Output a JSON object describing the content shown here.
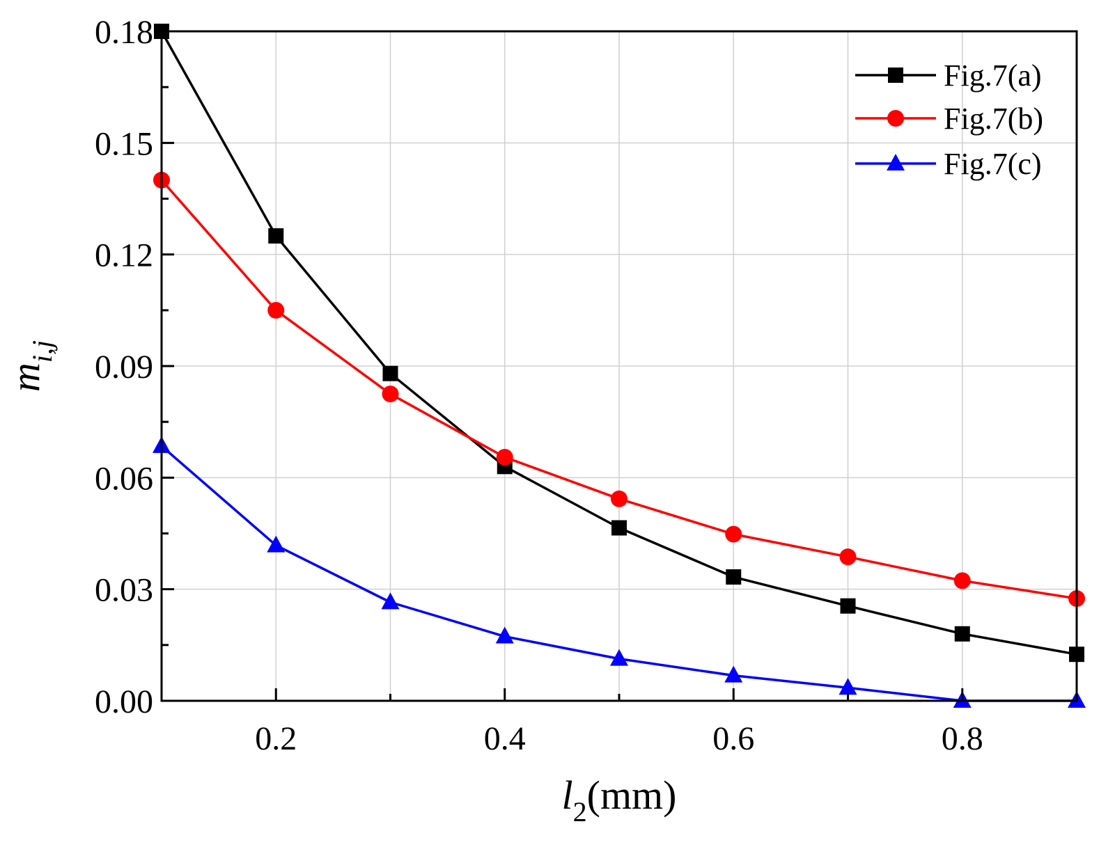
{
  "chart_data": {
    "type": "line",
    "title": "",
    "xlabel": {
      "main": "l",
      "sub": "2",
      "unit": "(mm)"
    },
    "ylabel": {
      "main": "m",
      "sub": "i,j"
    },
    "xlim": [
      0.1,
      0.9
    ],
    "ylim": [
      0.0,
      0.18
    ],
    "xticks": [
      "0.2",
      "0.4",
      "0.6",
      "0.8"
    ],
    "xtick_values": [
      0.2,
      0.4,
      0.6,
      0.8
    ],
    "yticks": [
      "0.00",
      "0.03",
      "0.06",
      "0.09",
      "0.12",
      "0.15",
      "0.18"
    ],
    "ytick_values": [
      0.0,
      0.03,
      0.06,
      0.09,
      0.12,
      0.15,
      0.18
    ],
    "grid": true,
    "legend_position": "top-right",
    "x": [
      0.1,
      0.2,
      0.3,
      0.4,
      0.5,
      0.6,
      0.7,
      0.8,
      0.9
    ],
    "series": [
      {
        "name": "Fig.7(a)",
        "color": "#000000",
        "marker": "square",
        "values": [
          0.18,
          0.125,
          0.088,
          0.063,
          0.0465,
          0.0333,
          0.0255,
          0.018,
          0.0125
        ]
      },
      {
        "name": "Fig.7(b)",
        "color": "#ff0000",
        "marker": "circle",
        "values": [
          0.14,
          0.105,
          0.0825,
          0.0655,
          0.0543,
          0.0448,
          0.0387,
          0.0323,
          0.0275
        ]
      },
      {
        "name": "Fig.7(c)",
        "color": "#0000ff",
        "marker": "triangle",
        "values": [
          0.0685,
          0.0418,
          0.0265,
          0.0173,
          0.0113,
          0.0068,
          0.0035,
          0.0,
          0.0
        ]
      }
    ]
  }
}
